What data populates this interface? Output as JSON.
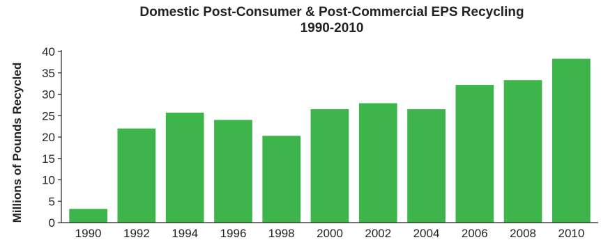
{
  "chart_data": {
    "type": "bar",
    "title": "Domestic Post-Consumer & Post-Commercial EPS Recycling",
    "subtitle": "1990-2010",
    "xlabel": "",
    "ylabel": "Millions of Pounds Recycled",
    "categories": [
      "1990",
      "1992",
      "1994",
      "1996",
      "1998",
      "2000",
      "2002",
      "2004",
      "2006",
      "2008",
      "2010"
    ],
    "values": [
      3.2,
      22.0,
      25.7,
      24.0,
      20.3,
      26.5,
      27.9,
      26.5,
      32.2,
      33.3,
      38.3
    ],
    "ylim": [
      0,
      40
    ],
    "yticks": [
      0,
      5,
      10,
      15,
      20,
      25,
      30,
      35,
      40
    ],
    "grid": false,
    "legend": "none",
    "bar_color": "#3db54a"
  }
}
